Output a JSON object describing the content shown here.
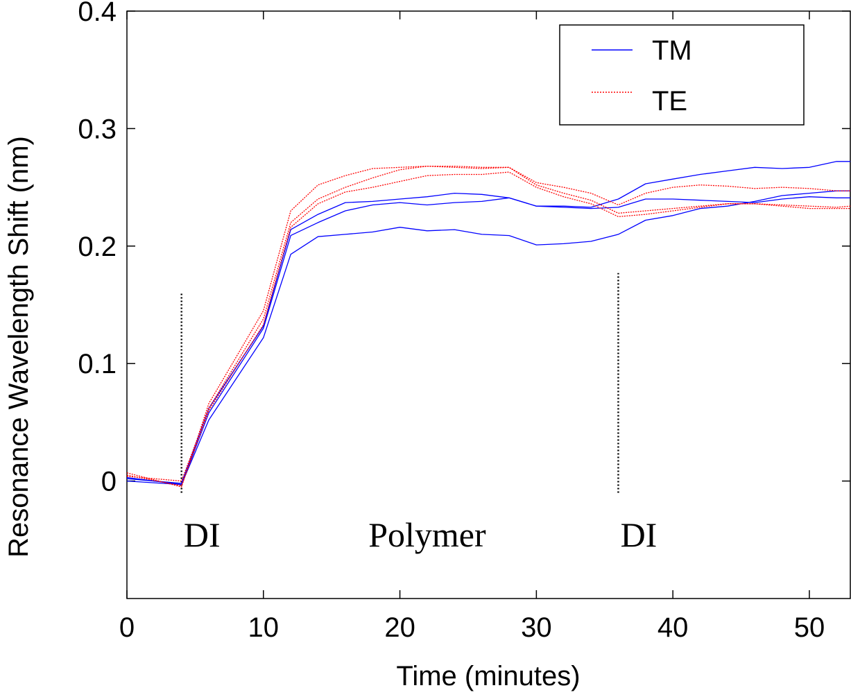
{
  "chart_data": {
    "type": "line",
    "title": "",
    "xlabel": "Time (minutes)",
    "ylabel": "Resonance Wavelength Shift (nm)",
    "xlim": [
      0,
      53
    ],
    "ylim": [
      -0.1,
      0.4
    ],
    "xticks": [
      0,
      10,
      20,
      30,
      40,
      50
    ],
    "xtick_labels": [
      "0",
      "10",
      "20",
      "30",
      "40",
      "50"
    ],
    "yticks": [
      0,
      0.1,
      0.2,
      0.3,
      0.4
    ],
    "ytick_labels": [
      "0",
      "0.1",
      "0.2",
      "0.3",
      "0.4"
    ],
    "grid": false,
    "legend": {
      "position": "top-right",
      "entries": [
        {
          "label": "TM",
          "color": "#0000ff",
          "style": "solid"
        },
        {
          "label": "TE",
          "color": "#ff0000",
          "style": "dotted"
        }
      ]
    },
    "x": [
      0,
      4,
      6,
      10,
      12,
      14,
      16,
      18,
      20,
      22,
      24,
      26,
      28,
      30,
      32,
      34,
      36,
      38,
      40,
      42,
      44,
      46,
      48,
      50,
      52,
      53
    ],
    "series": [
      {
        "name": "TM",
        "color": "#0000ff",
        "style": "solid",
        "values": [
          0.002,
          -0.002,
          0.062,
          0.132,
          0.214,
          0.227,
          0.237,
          0.238,
          0.24,
          0.242,
          0.245,
          0.244,
          0.241,
          0.234,
          0.234,
          0.233,
          0.24,
          0.253,
          0.257,
          0.261,
          0.264,
          0.267,
          0.266,
          0.267,
          0.272,
          0.272
        ]
      },
      {
        "name": "TM",
        "color": "#0000ff",
        "style": "solid",
        "values": [
          0.003,
          -0.003,
          0.058,
          0.13,
          0.209,
          0.22,
          0.23,
          0.235,
          0.237,
          0.235,
          0.237,
          0.238,
          0.241,
          0.234,
          0.233,
          0.232,
          0.233,
          0.24,
          0.24,
          0.239,
          0.238,
          0.237,
          0.24,
          0.242,
          0.241,
          0.241
        ]
      },
      {
        "name": "TM",
        "color": "#0000ff",
        "style": "solid",
        "values": [
          0.0,
          -0.003,
          0.052,
          0.122,
          0.193,
          0.208,
          0.21,
          0.212,
          0.216,
          0.213,
          0.214,
          0.21,
          0.209,
          0.201,
          0.202,
          0.204,
          0.21,
          0.222,
          0.226,
          0.232,
          0.234,
          0.238,
          0.243,
          0.245,
          0.247,
          0.247
        ]
      },
      {
        "name": "TE",
        "color": "#ff0000",
        "style": "dotted",
        "values": [
          0.007,
          -0.005,
          0.066,
          0.145,
          0.23,
          0.252,
          0.26,
          0.266,
          0.267,
          0.268,
          0.268,
          0.267,
          0.267,
          0.254,
          0.25,
          0.245,
          0.235,
          0.245,
          0.25,
          0.252,
          0.251,
          0.249,
          0.25,
          0.249,
          0.247,
          0.247
        ]
      },
      {
        "name": "TE",
        "color": "#ff0000",
        "style": "dotted",
        "values": [
          0.004,
          0.0,
          0.062,
          0.138,
          0.22,
          0.24,
          0.25,
          0.258,
          0.265,
          0.268,
          0.267,
          0.266,
          0.267,
          0.252,
          0.245,
          0.239,
          0.228,
          0.23,
          0.232,
          0.234,
          0.236,
          0.236,
          0.234,
          0.232,
          0.232,
          0.232
        ]
      },
      {
        "name": "TE",
        "color": "#ff0000",
        "style": "dotted",
        "values": [
          0.005,
          -0.004,
          0.06,
          0.133,
          0.216,
          0.236,
          0.246,
          0.25,
          0.255,
          0.26,
          0.261,
          0.261,
          0.263,
          0.25,
          0.242,
          0.236,
          0.225,
          0.227,
          0.23,
          0.233,
          0.236,
          0.236,
          0.235,
          0.234,
          0.233,
          0.234
        ]
      }
    ],
    "markers": [
      {
        "x": 4,
        "y_from": -0.01,
        "y_to": 0.16,
        "style": "dotted",
        "color": "#000000"
      },
      {
        "x": 36,
        "y_from": -0.01,
        "y_to": 0.177,
        "style": "dotted",
        "color": "#000000"
      }
    ],
    "annotations": [
      {
        "text": "DI",
        "x": 5.5,
        "y": -0.045
      },
      {
        "text": "Polymer",
        "x": 22,
        "y": -0.045
      },
      {
        "text": "DI",
        "x": 37.5,
        "y": -0.045
      }
    ]
  }
}
